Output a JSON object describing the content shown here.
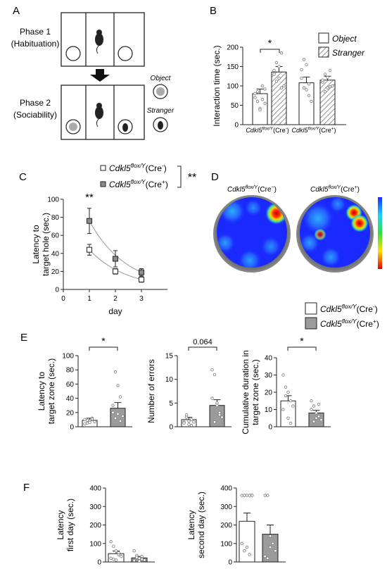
{
  "panels": {
    "A": {
      "letter": "A",
      "phase1": [
        "Phase 1",
        "(Habituation)"
      ],
      "phase2": [
        "Phase 2",
        "(Sociability)"
      ],
      "object_label": "Object",
      "stranger_label": "Stranger"
    },
    "B": {
      "letter": "B"
    },
    "C": {
      "letter": "C",
      "sig": "**",
      "peak_sig": "**"
    },
    "D": {
      "letter": "D",
      "map_labels": [
        {
          "gene": "Cdkl5",
          "sup": "flox/Y",
          "geno": "(Cre",
          "sign": "−",
          "close": ")"
        },
        {
          "gene": "Cdkl5",
          "sup": "flox/Y",
          "geno": "(Cre",
          "sign": "+",
          "close": ")"
        }
      ]
    },
    "E": {
      "letter": "E"
    },
    "F": {
      "letter": "F"
    }
  },
  "genotypes": {
    "cre_neg": {
      "gene": "Cdkl5",
      "sup": "flox/Y",
      "geno": "(Cre",
      "sign": "-",
      "close": ")"
    },
    "cre_pos": {
      "gene": "Cdkl5",
      "sup": "flox/Y",
      "geno": "(Cre",
      "sign": "+",
      "close": ")"
    }
  },
  "colors": {
    "white_bar": "#ffffff",
    "gray_bar": "#9b9b9b",
    "hatch_bar": "#ffffff",
    "axis": "#222222"
  },
  "chart_data": [
    {
      "id": "B",
      "type": "bar",
      "ylabel": "Interaction time (sec.)",
      "ylim": [
        0,
        200
      ],
      "yticks": [
        0,
        50,
        100,
        150,
        200
      ],
      "categories": [
        "Cdkl5flox/Y(Cre-)",
        "Cdkl5flox/Y(Cre+)"
      ],
      "legend": [
        "Object",
        "Stranger"
      ],
      "series": [
        {
          "name": "Object",
          "values": [
            80,
            108
          ],
          "sem": [
            12,
            15
          ]
        },
        {
          "name": "Stranger",
          "values": [
            136,
            115
          ],
          "sem": [
            14,
            10
          ]
        }
      ],
      "points": [
        [
          80,
          60,
          42,
          65,
          92,
          70,
          85,
          38,
          100,
          55
        ],
        [
          140,
          160,
          120,
          185,
          100,
          130,
          112,
          150,
          95
        ],
        [
          120,
          95,
          155,
          75,
          60,
          142,
          168,
          90,
          105
        ],
        [
          110,
          130,
          95,
          140,
          100,
          115,
          85,
          122,
          98
        ]
      ],
      "significance": [
        "*"
      ]
    },
    {
      "id": "C",
      "type": "line",
      "xlabel": "day",
      "ylabel": "Latency to target hole (sec.)",
      "xlim": [
        0,
        4
      ],
      "ylim": [
        0,
        100
      ],
      "xticks": [
        0,
        1,
        2,
        3
      ],
      "yticks": [
        0,
        20,
        40,
        60,
        80,
        100
      ],
      "x": [
        1,
        2,
        3
      ],
      "series": [
        {
          "name": "Cdkl5flox/Y(Cre-)",
          "values": [
            44,
            20,
            11
          ],
          "sem": [
            6,
            3,
            3
          ]
        },
        {
          "name": "Cdkl5flox/Y(Cre+)",
          "values": [
            76,
            34,
            19
          ],
          "sem": [
            14,
            9,
            4
          ]
        }
      ]
    },
    {
      "id": "E1",
      "type": "bar",
      "ylabel": "Latency to target zone (sec.)",
      "ylim": [
        0,
        100
      ],
      "yticks": [
        0,
        20,
        40,
        60,
        80,
        100
      ],
      "values": [
        9,
        26
      ],
      "sem": [
        3,
        8
      ],
      "points": [
        [
          10,
          5,
          8,
          12,
          7,
          4,
          9,
          6,
          11
        ],
        [
          20,
          77,
          58,
          8,
          15,
          30,
          12,
          18,
          42
        ]
      ],
      "significance": "*"
    },
    {
      "id": "E2",
      "type": "bar",
      "ylabel": "Number of errors",
      "ylim": [
        0,
        15
      ],
      "yticks": [
        0,
        5,
        10,
        15
      ],
      "values": [
        1.5,
        4.5
      ],
      "sem": [
        0.5,
        1.2
      ],
      "points": [
        [
          1,
          2,
          0.5,
          1.5,
          1,
          0.8,
          2.5,
          1.2,
          0.3
        ],
        [
          12,
          11,
          5,
          3,
          2,
          6,
          1,
          4.5,
          2.5
        ]
      ],
      "significance": "0.064"
    },
    {
      "id": "E3",
      "type": "bar",
      "ylabel": "Cumulative duration in target zone (sec.)",
      "ylim": [
        0,
        40
      ],
      "yticks": [
        0,
        10,
        20,
        30,
        40
      ],
      "values": [
        15,
        8
      ],
      "sem": [
        3,
        1.5
      ],
      "points": [
        [
          30,
          23,
          20,
          15,
          12,
          10,
          18,
          5,
          2
        ],
        [
          15,
          12,
          8,
          6,
          4,
          10,
          3,
          5,
          13
        ]
      ],
      "significance": "*",
      "legend": [
        "Cdkl5flox/Y(Cre-)",
        "Cdkl5flox/Y(Cre+)"
      ]
    },
    {
      "id": "F1",
      "type": "bar",
      "ylabel": "Latency first day (sec.)",
      "ylim": [
        0,
        400
      ],
      "yticks": [
        0,
        100,
        200,
        300,
        400
      ],
      "values": [
        45,
        22
      ],
      "sem": [
        14,
        8
      ],
      "points": [
        [
          110,
          85,
          60,
          40,
          30,
          20,
          15,
          10,
          50
        ],
        [
          60,
          35,
          20,
          15,
          10,
          8,
          25,
          5,
          30
        ]
      ]
    },
    {
      "id": "F2",
      "type": "bar",
      "ylabel": "Latency second day (sec.)",
      "ylim": [
        0,
        400
      ],
      "yticks": [
        0,
        100,
        200,
        300,
        400
      ],
      "values": [
        220,
        150
      ],
      "sem": [
        45,
        50
      ],
      "points": [
        [
          360,
          360,
          360,
          360,
          360,
          100,
          60,
          80,
          40
        ],
        [
          360,
          360,
          140,
          100,
          60,
          30,
          20,
          80
        ]
      ]
    }
  ]
}
